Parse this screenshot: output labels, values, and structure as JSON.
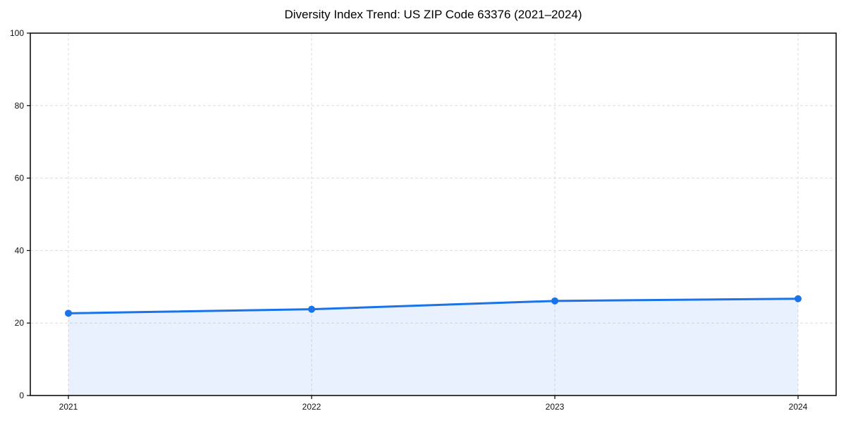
{
  "page": {
    "background": "#ffffff"
  },
  "chart_data": {
    "type": "line",
    "title": "Diversity Index Trend: US ZIP Code 63376 (2021–2024)",
    "x": [
      "2021",
      "2022",
      "2023",
      "2024"
    ],
    "series": [
      {
        "name": "Diversity Index",
        "values": [
          22.7,
          23.8,
          26.1,
          26.7
        ]
      }
    ],
    "xlabel": "",
    "ylabel": "",
    "ylim": [
      0,
      100
    ],
    "yticks": [
      0,
      20,
      40,
      60,
      80,
      100
    ],
    "xticks": [
      "2021",
      "2022",
      "2023",
      "2024"
    ],
    "grid": true,
    "grid_style": "dashed",
    "legend": false,
    "marker": "circle",
    "area_fill": true,
    "colors": {
      "line": "#1a73e8",
      "marker": "#1a73e8",
      "area": "#1a73e8",
      "area_opacity": 0.1,
      "grid": "#dedede",
      "axis": "#000000",
      "text": "#111111",
      "background": "#ffffff"
    }
  }
}
